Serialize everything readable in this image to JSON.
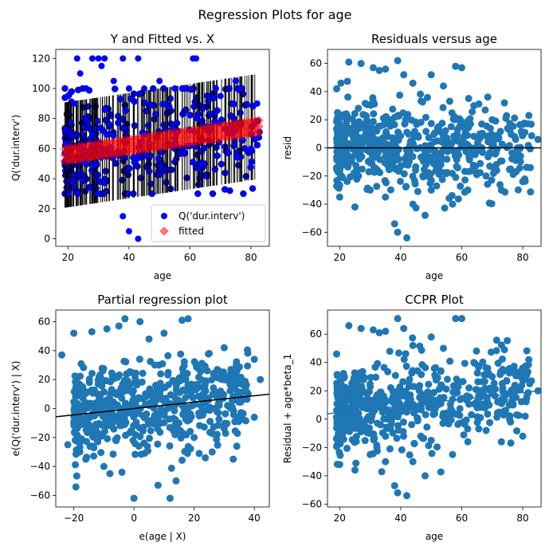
{
  "figure": {
    "suptitle": "Regression Plots for age"
  },
  "colors": {
    "blue": "#0000ff",
    "scatter": "#1f77b4",
    "red": "#ff0000",
    "black": "#000000"
  },
  "chart_data": [
    {
      "id": "fit",
      "type": "scatter",
      "title": "Y and Fitted vs. X",
      "xlabel": "age",
      "ylabel": "Q('dur.interv')",
      "xlim": [
        16,
        86
      ],
      "ylim": [
        -5,
        126
      ],
      "xticks": [
        20,
        40,
        60,
        80
      ],
      "yticks": [
        0,
        20,
        40,
        60,
        80,
        100,
        120
      ],
      "legend": {
        "placement": "lower-right",
        "entries": [
          "Q('dur.interv')",
          "fitted"
        ]
      },
      "series": [
        {
          "name": "Q('dur.interv')",
          "kind": "observed",
          "color": "#0000ff",
          "points": [
            [
              20,
              95
            ],
            [
              22,
              90
            ],
            [
              23,
              120
            ],
            [
              24,
              110
            ],
            [
              26,
              100
            ],
            [
              28,
              120
            ],
            [
              30,
              120
            ],
            [
              31,
              115
            ],
            [
              32,
              120
            ],
            [
              35,
              105
            ],
            [
              38,
              120
            ],
            [
              40,
              100
            ],
            [
              43,
              120
            ],
            [
              45,
              100
            ],
            [
              50,
              105
            ],
            [
              55,
              100
            ],
            [
              61,
              120
            ],
            [
              62,
              120
            ],
            [
              58,
              100
            ],
            [
              70,
              95
            ],
            [
              75,
              105
            ],
            [
              82,
              90
            ],
            [
              80,
              60
            ],
            [
              74,
              70
            ],
            [
              40,
              5
            ],
            [
              43,
              0
            ],
            [
              38,
              15
            ]
          ]
        },
        {
          "name": "fitted",
          "kind": "fitted",
          "color": "#ff0000",
          "intercept": 50,
          "slope": 0.3
        }
      ]
    },
    {
      "id": "resid",
      "type": "scatter",
      "title": "Residuals versus age",
      "xlabel": "age",
      "ylabel": "resid",
      "xlim": [
        16,
        86
      ],
      "ylim": [
        -70,
        70
      ],
      "xticks": [
        20,
        40,
        60,
        80
      ],
      "yticks": [
        -60,
        -40,
        -20,
        0,
        20,
        40,
        60
      ],
      "hline": 0,
      "points": [
        [
          23,
          61
        ],
        [
          27,
          60
        ],
        [
          31,
          57
        ],
        [
          33,
          55
        ],
        [
          35,
          56
        ],
        [
          39,
          62
        ],
        [
          41,
          52
        ],
        [
          44,
          46
        ],
        [
          50,
          52
        ],
        [
          54,
          44
        ],
        [
          58,
          58
        ],
        [
          60,
          57
        ],
        [
          64,
          30
        ],
        [
          70,
          20
        ],
        [
          74,
          32
        ],
        [
          82,
          23
        ],
        [
          85,
          6
        ],
        [
          80,
          -24
        ],
        [
          73,
          -30
        ],
        [
          68,
          -20
        ],
        [
          62,
          -30
        ],
        [
          57,
          -40
        ],
        [
          50,
          -30
        ],
        [
          44,
          -40
        ],
        [
          42,
          -64
        ],
        [
          39,
          -60
        ],
        [
          38,
          -54
        ],
        [
          25,
          -42
        ],
        [
          20,
          -35
        ],
        [
          19,
          42
        ],
        [
          30,
          -30
        ],
        [
          35,
          -35
        ],
        [
          66,
          10
        ],
        [
          76,
          -15
        ],
        [
          48,
          -48
        ]
      ]
    },
    {
      "id": "partial",
      "type": "scatter",
      "title": "Partial regression plot",
      "xlabel": "e(age | X)",
      "ylabel": "e(Q('dur.interv') | X)",
      "xlim": [
        -26,
        45
      ],
      "ylim": [
        -68,
        68
      ],
      "xticks": [
        -20,
        0,
        20,
        40
      ],
      "yticks": [
        -60,
        -40,
        -20,
        0,
        20,
        40,
        60
      ],
      "fit_line": {
        "slope": 0.22,
        "intercept": 0
      },
      "points": [
        [
          -20,
          52
        ],
        [
          -14,
          53
        ],
        [
          -9,
          55
        ],
        [
          -5,
          57
        ],
        [
          -3,
          62
        ],
        [
          2,
          60
        ],
        [
          5,
          48
        ],
        [
          10,
          52
        ],
        [
          16,
          61
        ],
        [
          18,
          62
        ],
        [
          25,
          38
        ],
        [
          30,
          42
        ],
        [
          34,
          30
        ],
        [
          40,
          34
        ],
        [
          42,
          20
        ],
        [
          40,
          -6
        ],
        [
          33,
          -35
        ],
        [
          26,
          -30
        ],
        [
          20,
          -20
        ],
        [
          14,
          -50
        ],
        [
          12,
          -62
        ],
        [
          8,
          -53
        ],
        [
          0,
          -62
        ],
        [
          -4,
          -44
        ],
        [
          -10,
          -40
        ],
        [
          -16,
          -35
        ],
        [
          -24,
          37
        ],
        [
          -22,
          -25
        ],
        [
          -18,
          -30
        ],
        [
          -8,
          -45
        ]
      ]
    },
    {
      "id": "ccpr",
      "type": "scatter",
      "title": "CCPR Plot",
      "xlabel": "age",
      "ylabel": "Residual + age*beta_1",
      "xlim": [
        16,
        86
      ],
      "ylim": [
        -62,
        77
      ],
      "xticks": [
        20,
        40,
        60,
        80
      ],
      "yticks": [
        -60,
        -40,
        -20,
        0,
        20,
        40,
        60
      ],
      "fit_line": {
        "slope": 0.235,
        "intercept": 0
      },
      "points": [
        [
          23,
          66
        ],
        [
          27,
          64
        ],
        [
          31,
          63
        ],
        [
          33,
          61
        ],
        [
          35,
          62
        ],
        [
          39,
          71
        ],
        [
          41,
          64
        ],
        [
          44,
          52
        ],
        [
          50,
          58
        ],
        [
          54,
          50
        ],
        [
          58,
          71
        ],
        [
          60,
          71
        ],
        [
          64,
          40
        ],
        [
          70,
          30
        ],
        [
          74,
          49
        ],
        [
          82,
          42
        ],
        [
          85,
          20
        ],
        [
          80,
          -12
        ],
        [
          73,
          -16
        ],
        [
          68,
          -8
        ],
        [
          62,
          -16
        ],
        [
          57,
          -25
        ],
        [
          50,
          -15
        ],
        [
          44,
          -30
        ],
        [
          42,
          -54
        ],
        [
          39,
          -52
        ],
        [
          38,
          -47
        ],
        [
          25,
          -36
        ],
        [
          20,
          -32
        ],
        [
          19,
          46
        ],
        [
          30,
          -25
        ],
        [
          35,
          -30
        ],
        [
          66,
          20
        ],
        [
          76,
          -2
        ],
        [
          48,
          -40
        ]
      ]
    }
  ]
}
